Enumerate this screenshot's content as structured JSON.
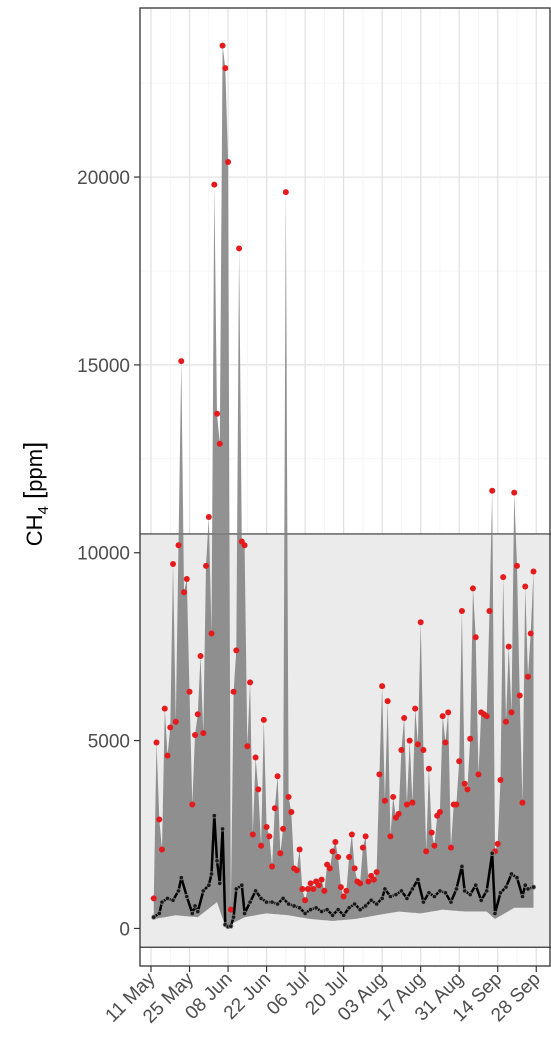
{
  "chart_data": {
    "type": "area",
    "title": "",
    "xlabel": "",
    "ylabel": "CH",
    "ylabel_sub": "4",
    "ylabel_unit": "ppm",
    "ylim": [
      -1000,
      24500
    ],
    "yticks": [
      0,
      5000,
      10000,
      15000,
      20000
    ],
    "xlim": [
      "2020-05-07",
      "2020-10-03"
    ],
    "x_tick_labels": [
      {
        "date": "2020-05-11",
        "label": "11 May"
      },
      {
        "date": "2020-05-25",
        "label": "25 May"
      },
      {
        "date": "2020-06-08",
        "label": "08 Jun"
      },
      {
        "date": "2020-06-22",
        "label": "22 Jun"
      },
      {
        "date": "2020-07-06",
        "label": "06 Jul"
      },
      {
        "date": "2020-07-20",
        "label": "20 Jul"
      },
      {
        "date": "2020-08-03",
        "label": "03 Aug"
      },
      {
        "date": "2020-08-17",
        "label": "17 Aug"
      },
      {
        "date": "2020-08-31",
        "label": "31 Aug"
      },
      {
        "date": "2020-09-14",
        "label": "14 Sep"
      },
      {
        "date": "2020-09-28",
        "label": "28 Sep"
      }
    ],
    "highlight_band": {
      "y_from": -500,
      "y_to": 10500
    },
    "grid": true,
    "series": [
      {
        "role": "max_points",
        "color": "#e41a1c",
        "points": [
          [
            "2020-05-12",
            800
          ],
          [
            "2020-05-13",
            4950
          ],
          [
            "2020-05-14",
            2900
          ],
          [
            "2020-05-15",
            2100
          ],
          [
            "2020-05-16",
            5850
          ],
          [
            "2020-05-17",
            4600
          ],
          [
            "2020-05-18",
            5350
          ],
          [
            "2020-05-19",
            9700
          ],
          [
            "2020-05-20",
            5500
          ],
          [
            "2020-05-21",
            10200
          ],
          [
            "2020-05-22",
            15100
          ],
          [
            "2020-05-23",
            8950
          ],
          [
            "2020-05-24",
            9300
          ],
          [
            "2020-05-25",
            6300
          ],
          [
            "2020-05-26",
            3300
          ],
          [
            "2020-05-27",
            5150
          ],
          [
            "2020-05-28",
            5700
          ],
          [
            "2020-05-29",
            7250
          ],
          [
            "2020-05-30",
            5200
          ],
          [
            "2020-05-31",
            9650
          ],
          [
            "2020-06-01",
            10950
          ],
          [
            "2020-06-02",
            7850
          ],
          [
            "2020-06-03",
            19800
          ],
          [
            "2020-06-04",
            13700
          ],
          [
            "2020-06-05",
            12900
          ],
          [
            "2020-06-06",
            23500
          ],
          [
            "2020-06-07",
            22900
          ],
          [
            "2020-06-08",
            20400
          ],
          [
            "2020-06-09",
            500
          ],
          [
            "2020-06-10",
            6300
          ],
          [
            "2020-06-11",
            7400
          ],
          [
            "2020-06-12",
            18100
          ],
          [
            "2020-06-13",
            10300
          ],
          [
            "2020-06-14",
            10200
          ],
          [
            "2020-06-15",
            4850
          ],
          [
            "2020-06-16",
            6550
          ],
          [
            "2020-06-17",
            2500
          ],
          [
            "2020-06-18",
            4550
          ],
          [
            "2020-06-19",
            3700
          ],
          [
            "2020-06-20",
            2200
          ],
          [
            "2020-06-21",
            5550
          ],
          [
            "2020-06-22",
            2700
          ],
          [
            "2020-06-23",
            2450
          ],
          [
            "2020-06-24",
            1650
          ],
          [
            "2020-06-25",
            3200
          ],
          [
            "2020-06-26",
            4050
          ],
          [
            "2020-06-27",
            2000
          ],
          [
            "2020-06-28",
            2650
          ],
          [
            "2020-06-29",
            19600
          ],
          [
            "2020-06-30",
            3500
          ],
          [
            "2020-07-01",
            3100
          ],
          [
            "2020-07-02",
            1600
          ],
          [
            "2020-07-03",
            1550
          ],
          [
            "2020-07-04",
            2100
          ],
          [
            "2020-07-05",
            1050
          ],
          [
            "2020-07-06",
            750
          ],
          [
            "2020-07-07",
            1050
          ],
          [
            "2020-07-08",
            1200
          ],
          [
            "2020-07-09",
            1050
          ],
          [
            "2020-07-10",
            1250
          ],
          [
            "2020-07-11",
            1150
          ],
          [
            "2020-07-12",
            1300
          ],
          [
            "2020-07-13",
            1000
          ],
          [
            "2020-07-14",
            1700
          ],
          [
            "2020-07-15",
            1600
          ],
          [
            "2020-07-16",
            2050
          ],
          [
            "2020-07-17",
            2300
          ],
          [
            "2020-07-18",
            1900
          ],
          [
            "2020-07-19",
            1100
          ],
          [
            "2020-07-20",
            850
          ],
          [
            "2020-07-21",
            1000
          ],
          [
            "2020-07-22",
            1900
          ],
          [
            "2020-07-23",
            2500
          ],
          [
            "2020-07-24",
            1600
          ],
          [
            "2020-07-25",
            1250
          ],
          [
            "2020-07-26",
            1200
          ],
          [
            "2020-07-27",
            2150
          ],
          [
            "2020-07-28",
            2450
          ],
          [
            "2020-07-29",
            1250
          ],
          [
            "2020-07-30",
            1400
          ],
          [
            "2020-07-31",
            1300
          ],
          [
            "2020-08-01",
            1500
          ],
          [
            "2020-08-02",
            4100
          ],
          [
            "2020-08-03",
            6450
          ],
          [
            "2020-08-04",
            3400
          ],
          [
            "2020-08-05",
            6050
          ],
          [
            "2020-08-06",
            2450
          ],
          [
            "2020-08-07",
            3500
          ],
          [
            "2020-08-08",
            2950
          ],
          [
            "2020-08-09",
            3050
          ],
          [
            "2020-08-10",
            4750
          ],
          [
            "2020-08-11",
            5600
          ],
          [
            "2020-08-12",
            3300
          ],
          [
            "2020-08-13",
            5000
          ],
          [
            "2020-08-14",
            3350
          ],
          [
            "2020-08-15",
            5850
          ],
          [
            "2020-08-16",
            4900
          ],
          [
            "2020-08-17",
            8150
          ],
          [
            "2020-08-18",
            4750
          ],
          [
            "2020-08-19",
            2050
          ],
          [
            "2020-08-20",
            4250
          ],
          [
            "2020-08-21",
            2550
          ],
          [
            "2020-08-22",
            2200
          ],
          [
            "2020-08-23",
            3000
          ],
          [
            "2020-08-24",
            3100
          ],
          [
            "2020-08-25",
            5650
          ],
          [
            "2020-08-26",
            4950
          ],
          [
            "2020-08-27",
            5750
          ],
          [
            "2020-08-28",
            2150
          ],
          [
            "2020-08-29",
            3300
          ],
          [
            "2020-08-30",
            3300
          ],
          [
            "2020-08-31",
            4450
          ],
          [
            "2020-09-01",
            8450
          ],
          [
            "2020-09-02",
            3850
          ],
          [
            "2020-09-03",
            3700
          ],
          [
            "2020-09-04",
            5050
          ],
          [
            "2020-09-05",
            9050
          ],
          [
            "2020-09-06",
            7750
          ],
          [
            "2020-09-07",
            4100
          ],
          [
            "2020-09-08",
            5750
          ],
          [
            "2020-09-09",
            5700
          ],
          [
            "2020-09-10",
            5650
          ],
          [
            "2020-09-11",
            8450
          ],
          [
            "2020-09-12",
            11650
          ],
          [
            "2020-09-13",
            2050
          ],
          [
            "2020-09-14",
            2250
          ],
          [
            "2020-09-15",
            3950
          ],
          [
            "2020-09-16",
            9350
          ],
          [
            "2020-09-17",
            5500
          ],
          [
            "2020-09-18",
            7500
          ],
          [
            "2020-09-19",
            5750
          ],
          [
            "2020-09-20",
            11600
          ],
          [
            "2020-09-21",
            9650
          ],
          [
            "2020-09-22",
            6200
          ],
          [
            "2020-09-23",
            3350
          ],
          [
            "2020-09-24",
            9100
          ],
          [
            "2020-09-25",
            6700
          ],
          [
            "2020-09-26",
            7850
          ],
          [
            "2020-09-27",
            9500
          ]
        ]
      },
      {
        "role": "median_line",
        "color": "#000000",
        "points": [
          [
            "2020-05-12",
            300
          ],
          [
            "2020-05-14",
            400
          ],
          [
            "2020-05-15",
            700
          ],
          [
            "2020-05-17",
            800
          ],
          [
            "2020-05-19",
            750
          ],
          [
            "2020-05-21",
            1000
          ],
          [
            "2020-05-22",
            1350
          ],
          [
            "2020-05-24",
            850
          ],
          [
            "2020-05-26",
            400
          ],
          [
            "2020-05-27",
            600
          ],
          [
            "2020-05-28",
            450
          ],
          [
            "2020-05-30",
            1000
          ],
          [
            "2020-06-01",
            1150
          ],
          [
            "2020-06-02",
            1450
          ],
          [
            "2020-06-03",
            3000
          ],
          [
            "2020-06-04",
            1800
          ],
          [
            "2020-06-05",
            1200
          ],
          [
            "2020-06-06",
            2650
          ],
          [
            "2020-06-07",
            100
          ],
          [
            "2020-06-08",
            50
          ],
          [
            "2020-06-09",
            60
          ],
          [
            "2020-06-10",
            300
          ],
          [
            "2020-06-11",
            1050
          ],
          [
            "2020-06-13",
            1150
          ],
          [
            "2020-06-14",
            400
          ],
          [
            "2020-06-16",
            700
          ],
          [
            "2020-06-18",
            1000
          ],
          [
            "2020-06-20",
            800
          ],
          [
            "2020-06-22",
            700
          ],
          [
            "2020-06-24",
            700
          ],
          [
            "2020-06-26",
            650
          ],
          [
            "2020-06-28",
            800
          ],
          [
            "2020-06-30",
            650
          ],
          [
            "2020-07-02",
            600
          ],
          [
            "2020-07-04",
            550
          ],
          [
            "2020-07-06",
            400
          ],
          [
            "2020-07-08",
            500
          ],
          [
            "2020-07-10",
            550
          ],
          [
            "2020-07-12",
            450
          ],
          [
            "2020-07-14",
            500
          ],
          [
            "2020-07-16",
            350
          ],
          [
            "2020-07-18",
            500
          ],
          [
            "2020-07-20",
            350
          ],
          [
            "2020-07-22",
            550
          ],
          [
            "2020-07-24",
            650
          ],
          [
            "2020-07-26",
            500
          ],
          [
            "2020-07-28",
            600
          ],
          [
            "2020-07-30",
            750
          ],
          [
            "2020-08-01",
            650
          ],
          [
            "2020-08-03",
            800
          ],
          [
            "2020-08-04",
            1050
          ],
          [
            "2020-08-06",
            850
          ],
          [
            "2020-08-08",
            900
          ],
          [
            "2020-08-10",
            1000
          ],
          [
            "2020-08-12",
            800
          ],
          [
            "2020-08-14",
            1050
          ],
          [
            "2020-08-16",
            1300
          ],
          [
            "2020-08-18",
            700
          ],
          [
            "2020-08-20",
            950
          ],
          [
            "2020-08-22",
            850
          ],
          [
            "2020-08-24",
            1000
          ],
          [
            "2020-08-26",
            950
          ],
          [
            "2020-08-28",
            700
          ],
          [
            "2020-08-30",
            1050
          ],
          [
            "2020-09-01",
            1650
          ],
          [
            "2020-09-02",
            1000
          ],
          [
            "2020-09-04",
            900
          ],
          [
            "2020-09-06",
            1150
          ],
          [
            "2020-09-08",
            750
          ],
          [
            "2020-09-10",
            1000
          ],
          [
            "2020-09-12",
            2000
          ],
          [
            "2020-09-13",
            400
          ],
          [
            "2020-09-15",
            950
          ],
          [
            "2020-09-17",
            1100
          ],
          [
            "2020-09-19",
            1450
          ],
          [
            "2020-09-21",
            1350
          ],
          [
            "2020-09-23",
            850
          ],
          [
            "2020-09-24",
            1150
          ],
          [
            "2020-09-25",
            1050
          ],
          [
            "2020-09-27",
            1100
          ]
        ]
      },
      {
        "role": "lower_band",
        "color": "#7f7f7f",
        "points": [
          [
            "2020-05-12",
            250
          ],
          [
            "2020-05-20",
            350
          ],
          [
            "2020-05-28",
            300
          ],
          [
            "2020-06-04",
            700
          ],
          [
            "2020-06-07",
            50
          ],
          [
            "2020-06-10",
            150
          ],
          [
            "2020-06-14",
            300
          ],
          [
            "2020-06-22",
            400
          ],
          [
            "2020-06-30",
            350
          ],
          [
            "2020-07-08",
            250
          ],
          [
            "2020-07-16",
            200
          ],
          [
            "2020-07-24",
            250
          ],
          [
            "2020-08-01",
            350
          ],
          [
            "2020-08-09",
            450
          ],
          [
            "2020-08-17",
            400
          ],
          [
            "2020-08-25",
            500
          ],
          [
            "2020-09-02",
            450
          ],
          [
            "2020-09-10",
            450
          ],
          [
            "2020-09-13",
            250
          ],
          [
            "2020-09-20",
            550
          ],
          [
            "2020-09-27",
            550
          ]
        ]
      }
    ]
  }
}
